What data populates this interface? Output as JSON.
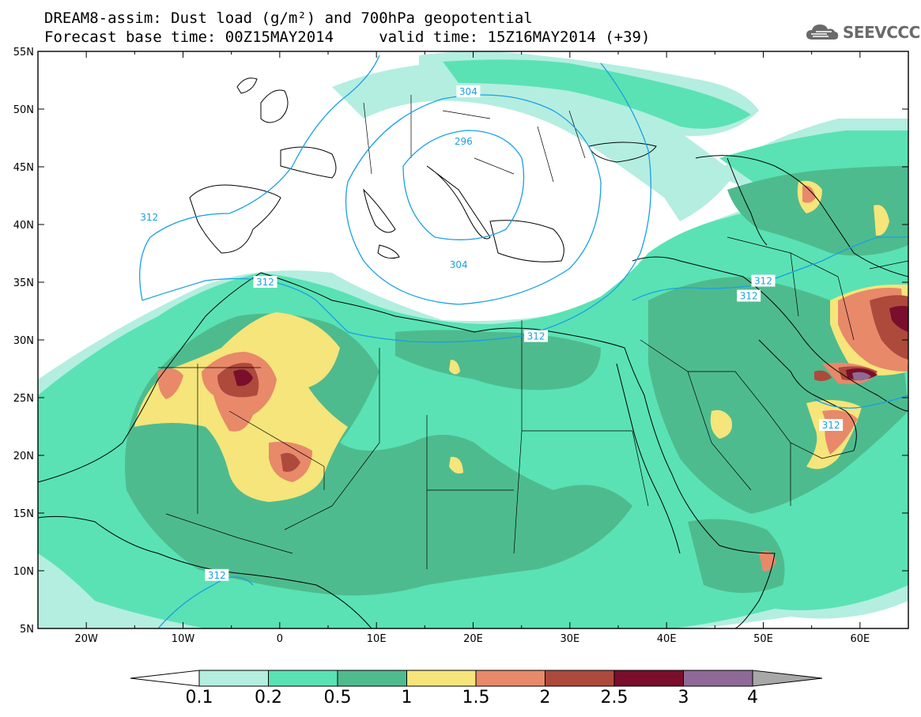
{
  "title": {
    "line1": "DREAM8-assim: Dust load (g/m²) and 700hPa geopotential",
    "line2": "Forecast base time: 00Z15MAY2014     valid time: 15Z16MAY2014 (+39)"
  },
  "logo": {
    "text": "SEEVCCC",
    "icon": "cloud-icon"
  },
  "axes": {
    "x_ticks": [
      "20W",
      "10W",
      "0",
      "10E",
      "20E",
      "30E",
      "40E",
      "50E",
      "60E"
    ],
    "y_ticks": [
      "55N",
      "50N",
      "45N",
      "40N",
      "35N",
      "30N",
      "25N",
      "20N",
      "15N",
      "10N",
      "5N"
    ],
    "lon_range": [
      -25,
      65
    ],
    "lat_range": [
      5,
      55
    ]
  },
  "colorbar": {
    "labels": [
      "0.1",
      "0.2",
      "0.5",
      "1",
      "1.5",
      "2",
      "2.5",
      "3",
      "4"
    ],
    "colors": [
      "#b4eee0",
      "#5ae2b4",
      "#4ebb8e",
      "#f5e57a",
      "#e8896a",
      "#ad4a3c",
      "#7a0e2c",
      "#8e6a98"
    ],
    "end_colors": {
      "low": "#ffffff",
      "high": "#a8a8a8"
    }
  },
  "contours": {
    "color": "#1a9fe6",
    "labels": [
      {
        "value": "304",
        "lon": 19.5,
        "lat": 51.5
      },
      {
        "value": "296",
        "lon": 19.0,
        "lat": 47.2
      },
      {
        "value": "304",
        "lon": 18.5,
        "lat": 36.5
      },
      {
        "value": "312",
        "lon": -13.5,
        "lat": 40.6
      },
      {
        "value": "312",
        "lon": -1.5,
        "lat": 35.0
      },
      {
        "value": "312",
        "lon": 26.5,
        "lat": 30.3
      },
      {
        "value": "312",
        "lon": 50.0,
        "lat": 35.1
      },
      {
        "value": "312",
        "lon": 48.5,
        "lat": 33.8
      },
      {
        "value": "312",
        "lon": 57.0,
        "lat": 22.6
      },
      {
        "value": "312",
        "lon": -6.5,
        "lat": 9.6
      }
    ]
  }
}
